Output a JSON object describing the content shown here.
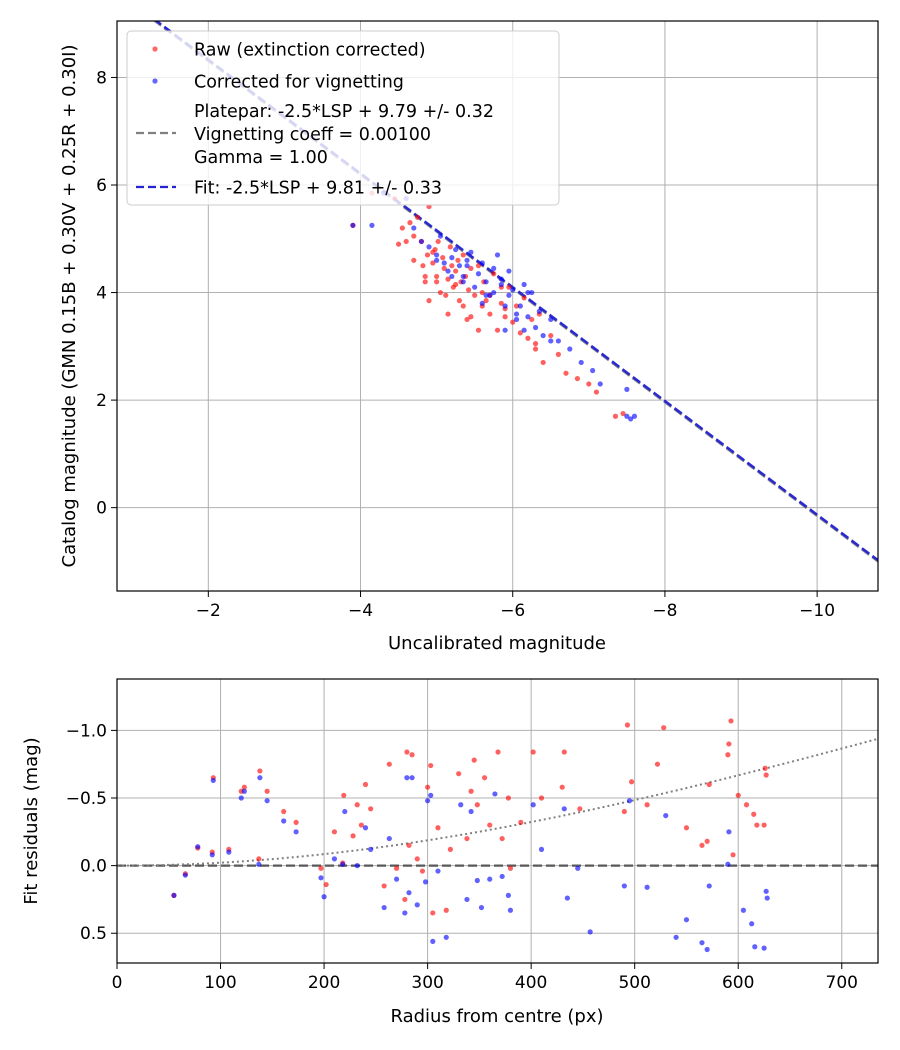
{
  "chart_data": [
    {
      "type": "scatter",
      "xlabel": "Uncalibrated magnitude",
      "ylabel": "Catalog magnitude (GMN 0.15B + 0.30V + 0.25R + 0.30I)",
      "xlim": [
        -0.8,
        -10.8
      ],
      "ylim": [
        9.05,
        -1.55
      ],
      "xticks": [
        -2,
        -4,
        -6,
        -8,
        -10
      ],
      "xtick_labels": [
        "−2",
        "−4",
        "−6",
        "−8",
        "−10"
      ],
      "yticks": [
        0,
        2,
        4,
        6,
        8
      ],
      "ytick_labels": [
        "0",
        "2",
        "4",
        "6",
        "8"
      ],
      "grid": true,
      "legend_position": "top-left",
      "legend": {
        "raw": "Raw (extinction corrected)",
        "corrected": "Corrected for vignetting",
        "platepar_lines": [
          "Platepar: -2.5*LSP + 9.79 +/- 0.32",
          "Vignetting coeff = 0.00100",
          "Gamma = 1.00"
        ],
        "fit": "Fit: -2.5*LSP + 9.81 +/- 0.33"
      },
      "colors": {
        "raw": "#ff0000",
        "corrected": "#0000ff",
        "platepar": "#808080",
        "fit": "#2323d2"
      },
      "lines": [
        {
          "name": "platepar",
          "x": [
            -0.6,
            -11
          ],
          "y": [
            9.79,
            -1.21
          ]
        },
        {
          "name": "fit",
          "x": [
            -0.6,
            -11
          ],
          "y": [
            9.81,
            -1.19
          ]
        }
      ],
      "series": [
        {
          "name": "Raw (extinction corrected)",
          "x": [
            -3.9,
            -4.15,
            -4.45,
            -4.5,
            -4.55,
            -4.6,
            -4.65,
            -4.7,
            -4.75,
            -4.8,
            -4.82,
            -4.85,
            -4.88,
            -4.9,
            -4.95,
            -4.98,
            -5.0,
            -5.02,
            -5.05,
            -5.08,
            -5.1,
            -5.12,
            -5.15,
            -5.18,
            -5.2,
            -5.22,
            -5.25,
            -5.28,
            -5.3,
            -5.32,
            -5.35,
            -5.38,
            -5.4,
            -5.42,
            -5.45,
            -5.5,
            -5.55,
            -5.6,
            -5.62,
            -5.65,
            -5.7,
            -5.75,
            -5.8,
            -5.85,
            -5.9,
            -5.95,
            -6.0,
            -6.05,
            -6.1,
            -6.15,
            -6.2,
            -6.25,
            -6.3,
            -6.35,
            -6.4,
            -6.5,
            -6.6,
            -6.7,
            -6.85,
            -7.0,
            -7.1,
            -7.35,
            -7.45,
            -4.7,
            -4.9,
            -5.0,
            -5.35,
            -5.55,
            -5.7,
            -5.85,
            -6.3,
            -5.45,
            -4.95,
            -5.15,
            -5.6,
            -5.9,
            -4.85,
            -5.25
          ],
          "y": [
            5.25,
            5.85,
            5.75,
            4.9,
            5.2,
            4.95,
            5.3,
            4.6,
            5.4,
            4.95,
            4.5,
            4.2,
            4.7,
            3.85,
            4.55,
            4.8,
            4.3,
            4.95,
            4.0,
            4.65,
            4.45,
            3.95,
            4.25,
            4.85,
            4.5,
            4.1,
            4.4,
            4.6,
            3.85,
            4.2,
            4.7,
            4.3,
            3.5,
            4.05,
            4.45,
            3.95,
            3.3,
            3.75,
            4.2,
            3.85,
            3.6,
            4.35,
            3.3,
            3.8,
            3.55,
            4.1,
            3.45,
            3.75,
            3.25,
            3.9,
            3.15,
            3.5,
            2.95,
            3.6,
            2.7,
            3.2,
            2.85,
            2.5,
            2.4,
            2.3,
            2.15,
            1.7,
            1.75,
            5.05,
            5.6,
            4.2,
            3.75,
            4.5,
            3.95,
            4.1,
            3.05,
            3.55,
            4.75,
            3.6,
            4.0,
            3.7,
            4.3,
            4.15
          ]
        },
        {
          "name": "Corrected for vignetting",
          "x": [
            -3.9,
            -4.15,
            -4.3,
            -4.6,
            -4.7,
            -4.8,
            -4.9,
            -5.0,
            -5.05,
            -5.1,
            -5.15,
            -5.2,
            -5.25,
            -5.3,
            -5.35,
            -5.4,
            -5.45,
            -5.5,
            -5.55,
            -5.6,
            -5.65,
            -5.7,
            -5.75,
            -5.8,
            -5.85,
            -5.9,
            -5.95,
            -6.0,
            -6.05,
            -6.1,
            -6.15,
            -6.2,
            -6.25,
            -6.3,
            -6.35,
            -6.4,
            -6.5,
            -6.6,
            -6.75,
            -6.9,
            -7.05,
            -7.15,
            -7.5,
            -7.55,
            -7.6,
            -7.5,
            -5.95,
            -6.2,
            -6.05,
            -5.6,
            -5.4,
            -5.2,
            -5.75,
            -5.9,
            -6.5,
            -5.85,
            -5.65,
            -5.0,
            -5.35,
            -6.15
          ],
          "y": [
            5.25,
            5.25,
            5.85,
            5.75,
            5.2,
            4.95,
            4.85,
            4.7,
            5.05,
            4.55,
            4.4,
            4.65,
            4.8,
            4.5,
            4.3,
            4.6,
            4.75,
            4.1,
            4.35,
            4.55,
            4.2,
            3.95,
            4.0,
            4.7,
            4.25,
            3.75,
            3.95,
            4.05,
            3.5,
            3.75,
            4.15,
            3.55,
            4.0,
            3.35,
            3.65,
            3.2,
            3.5,
            3.1,
            2.95,
            2.7,
            2.55,
            2.3,
            2.2,
            1.65,
            1.7,
            1.7,
            4.4,
            4.0,
            3.6,
            3.8,
            4.5,
            4.3,
            4.45,
            3.3,
            3.1,
            4.15,
            3.95,
            4.6,
            4.2,
            3.3
          ]
        }
      ]
    },
    {
      "type": "scatter",
      "xlabel": "Radius from centre (px)",
      "ylabel": "Fit residuals (mag)",
      "xlim": [
        0,
        735
      ],
      "ylim": [
        -1.38,
        0.72
      ],
      "xticks": [
        0,
        100,
        200,
        300,
        400,
        500,
        600,
        700
      ],
      "xtick_labels": [
        "0",
        "100",
        "200",
        "300",
        "400",
        "500",
        "600",
        "700"
      ],
      "yticks": [
        0.5,
        0.0,
        -0.5,
        -1.0
      ],
      "ytick_labels": [
        "0.5",
        "0.0",
        "−0.5",
        "−1.0"
      ],
      "grid": true,
      "colors": {
        "raw": "#ff0000",
        "corrected": "#0000ff",
        "zero": "#595959",
        "vignetting": "#808080"
      },
      "zero_line": 0.0,
      "vignetting_curve": {
        "coeff": 0.001,
        "radius_max": 735
      },
      "series": [
        {
          "name": "Raw (extinction corrected)",
          "x": [
            55,
            66,
            78,
            92,
            93,
            108,
            120,
            123,
            137,
            138,
            145,
            161,
            173,
            197,
            202,
            210,
            218,
            219,
            228,
            232,
            236,
            240,
            245,
            258,
            263,
            270,
            278,
            280,
            282,
            285,
            290,
            295,
            300,
            303,
            305,
            310,
            318,
            322,
            330,
            338,
            342,
            345,
            348,
            355,
            360,
            368,
            372,
            378,
            380,
            390,
            402,
            410,
            430,
            432,
            447,
            490,
            493,
            497,
            512,
            522,
            528,
            550,
            570,
            572,
            600,
            608,
            615,
            618,
            625,
            626,
            627,
            590,
            591,
            593,
            595,
            565
          ],
          "y": [
            0.22,
            0.06,
            -0.13,
            -0.1,
            -0.65,
            -0.12,
            -0.55,
            -0.58,
            -0.05,
            -0.7,
            -0.55,
            -0.4,
            -0.32,
            0.02,
            0.14,
            -0.25,
            -0.02,
            -0.52,
            -0.22,
            -0.45,
            -0.3,
            -0.6,
            -0.42,
            0.15,
            -0.75,
            0.02,
            0.25,
            -0.84,
            -0.15,
            -0.82,
            -0.05,
            0.04,
            -0.58,
            -0.74,
            0.35,
            -0.28,
            0.33,
            -0.12,
            -0.68,
            -0.2,
            -0.55,
            -0.78,
            -0.45,
            -0.65,
            -0.3,
            -0.84,
            -0.2,
            -0.5,
            0.02,
            -0.32,
            -0.84,
            -0.5,
            -0.58,
            -0.84,
            -0.42,
            -0.4,
            -1.04,
            -0.62,
            -0.45,
            -0.75,
            -1.02,
            -0.28,
            -0.18,
            -0.6,
            -0.52,
            -0.45,
            -0.38,
            -0.3,
            -0.3,
            -0.72,
            -0.67,
            -0.82,
            -0.9,
            -1.07,
            -0.08,
            -0.15
          ],
          "note": "values estimated from figure"
        },
        {
          "name": "Corrected for vignetting",
          "x": [
            55,
            66,
            78,
            92,
            93,
            108,
            120,
            123,
            137,
            138,
            145,
            161,
            173,
            197,
            200,
            210,
            218,
            220,
            232,
            240,
            245,
            258,
            263,
            270,
            278,
            280,
            282,
            285,
            290,
            298,
            300,
            303,
            305,
            310,
            318,
            332,
            338,
            342,
            348,
            352,
            360,
            365,
            372,
            378,
            380,
            402,
            410,
            432,
            435,
            445,
            457,
            490,
            495,
            512,
            530,
            540,
            550,
            565,
            570,
            572,
            590,
            591,
            605,
            613,
            616,
            625,
            627,
            628
          ],
          "y": [
            0.22,
            0.07,
            -0.14,
            -0.08,
            -0.63,
            -0.1,
            -0.5,
            -0.55,
            -0.01,
            -0.65,
            -0.48,
            -0.33,
            -0.25,
            0.09,
            0.23,
            -0.05,
            -0.01,
            -0.4,
            0.0,
            -0.28,
            -0.12,
            0.31,
            -0.2,
            0.1,
            0.35,
            -0.65,
            0.2,
            -0.65,
            0.29,
            0.12,
            -0.48,
            -0.52,
            0.56,
            0.04,
            0.53,
            -0.45,
            0.25,
            -0.4,
            0.11,
            0.31,
            0.1,
            -0.53,
            0.08,
            0.22,
            0.33,
            -0.45,
            -0.12,
            -0.42,
            0.24,
            0.02,
            0.49,
            0.15,
            -0.48,
            0.16,
            -0.37,
            0.53,
            0.4,
            0.57,
            0.62,
            0.15,
            -0.01,
            -0.25,
            0.33,
            0.43,
            0.6,
            0.61,
            0.19,
            0.24
          ],
          "note": "values estimated from figure"
        }
      ]
    }
  ]
}
